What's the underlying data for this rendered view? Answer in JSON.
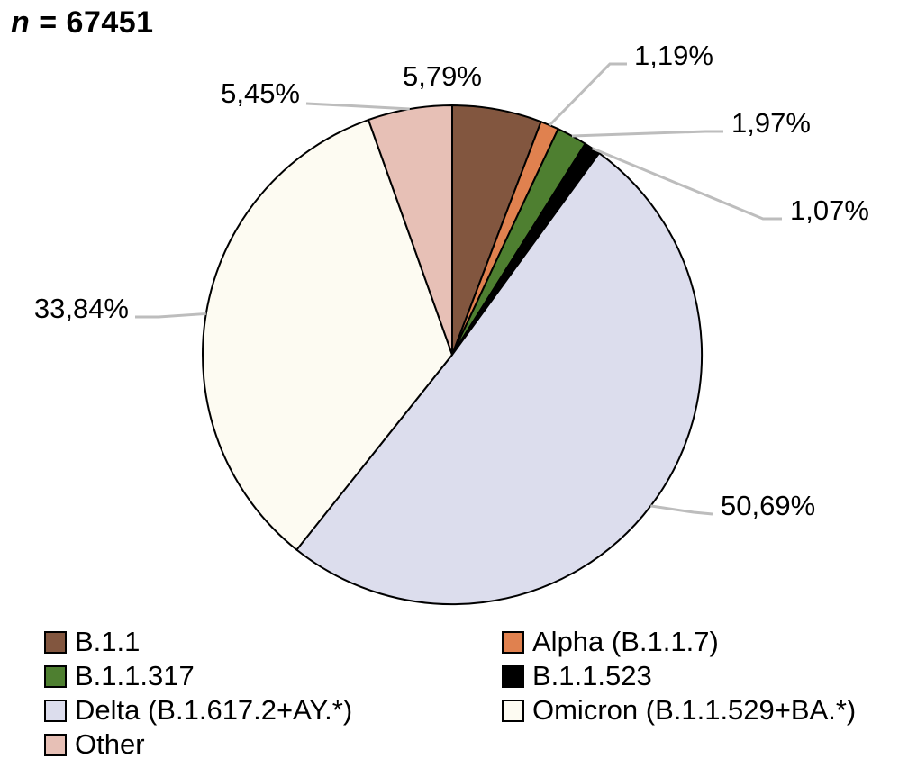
{
  "chart_data": {
    "type": "pie",
    "title": {
      "n_symbol": "n",
      "equals_value": "= 67451",
      "full": "n = 67451"
    },
    "total_n": 67451,
    "start_angle_deg": 0,
    "direction": "clockwise",
    "decimal_separator": ",",
    "segments": [
      {
        "label": "B.1.1",
        "value_pct": 5.79,
        "pct_label": "5,79%",
        "color": "#82563F"
      },
      {
        "label": "Alpha (B.1.1.7)",
        "value_pct": 1.19,
        "pct_label": "1,19%",
        "color": "#E0814F"
      },
      {
        "label": "B.1.1.317",
        "value_pct": 1.97,
        "pct_label": "1,97%",
        "color": "#4E7F30"
      },
      {
        "label": "B.1.1.523",
        "value_pct": 1.07,
        "pct_label": "1,07%",
        "color": "#000000"
      },
      {
        "label": "Delta (B.1.617.2+AY.*)",
        "value_pct": 50.69,
        "pct_label": "50,69%",
        "color": "#DCDDED"
      },
      {
        "label": "Omicron (B.1.1.529+BA.*)",
        "value_pct": 33.84,
        "pct_label": "33,84%",
        "color": "#FDFBF2"
      },
      {
        "label": "Other",
        "value_pct": 5.45,
        "pct_label": "5,45%",
        "color": "#E7C0B6"
      }
    ],
    "legend": {
      "position": "bottom",
      "columns": 2
    },
    "colors": {
      "leader_line": "#BDBDBD",
      "slice_border": "#000000",
      "background": "#FFFFFF",
      "text": "#000000"
    }
  }
}
